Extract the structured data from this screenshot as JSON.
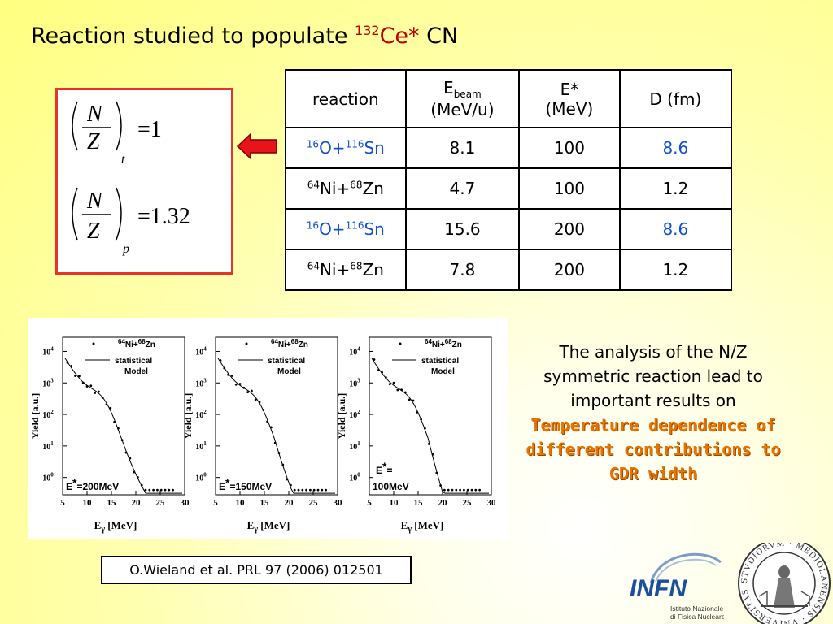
{
  "title": {
    "text": "Reaction studied to populate ",
    "sup": "132",
    "nucleus": "Ce*",
    "suffix": " CN"
  },
  "equations": {
    "eq1": {
      "num": "N",
      "den": "Z",
      "sub": "t",
      "rhs": "=1"
    },
    "eq2": {
      "num": "N",
      "den": "Z",
      "sub": "p",
      "rhs": "=1.32"
    }
  },
  "table": {
    "headers": {
      "reaction": "reaction",
      "ebeam": "E",
      "ebeam_sub": "beam",
      "ebeam_unit": "(MeV/u)",
      "estar": "E*",
      "estar_unit": "(MeV)",
      "d": "D (fm)"
    },
    "rows": [
      {
        "a1": "16",
        "e1": "O+",
        "a2": "116",
        "e2": "Sn",
        "ebeam": "8.1",
        "estar": "100",
        "d": "8.6",
        "highlight": true
      },
      {
        "a1": "64",
        "e1": "Ni+",
        "a2": "68",
        "e2": "Zn",
        "ebeam": "4.7",
        "estar": "100",
        "d": "1.2",
        "highlight": false
      },
      {
        "a1": "16",
        "e1": "O+",
        "a2": "116",
        "e2": "Sn",
        "ebeam": "15.6",
        "estar": "200",
        "d": "8.6",
        "highlight": true
      },
      {
        "a1": "64",
        "e1": "Ni+",
        "a2": "68",
        "e2": "Zn",
        "ebeam": "7.8",
        "estar": "200",
        "d": "1.2",
        "highlight": false
      }
    ],
    "blue": "#1050d0"
  },
  "plots": {
    "ylabel": "Yield [a.u.]",
    "xlabel": "E",
    "xlabel_sub": "γ",
    "xlabel_unit": " [MeV]",
    "xticks": [
      "5",
      "10",
      "15",
      "20",
      "25",
      "30"
    ],
    "yticks": [
      "0",
      "1",
      "2",
      "3",
      "4"
    ],
    "legend": {
      "reaction_a": "64",
      "reaction_e1": "Ni+",
      "reaction_b": "68",
      "reaction_e2": "Zn",
      "line1": "statistical",
      "line2": "Model"
    },
    "panels": [
      {
        "estar": "=200MeV"
      },
      {
        "estar": "=150MeV"
      },
      {
        "estar": "=",
        "estar2": "100MeV"
      }
    ]
  },
  "analysis": {
    "text": "The analysis of the N/Z symmetric reaction lead to important results on",
    "highlight": "Temperature dependence of different contributions to GDR width"
  },
  "reference": "O.Wieland et al. PRL 97 (2006) 012501",
  "infn": {
    "logo": "INFN",
    "line1": "Istituto Nazionale",
    "line2": "di Fisica Nucleare"
  },
  "seal": {
    "text": "STVDIORVM · MEDIOLANENSIS · VNIVERSITAS"
  },
  "colors": {
    "accent_red": "#c00000",
    "highlight_orange": "#e87400",
    "infn_blue": "#1b4e9b",
    "box_border": "#e8322c"
  }
}
